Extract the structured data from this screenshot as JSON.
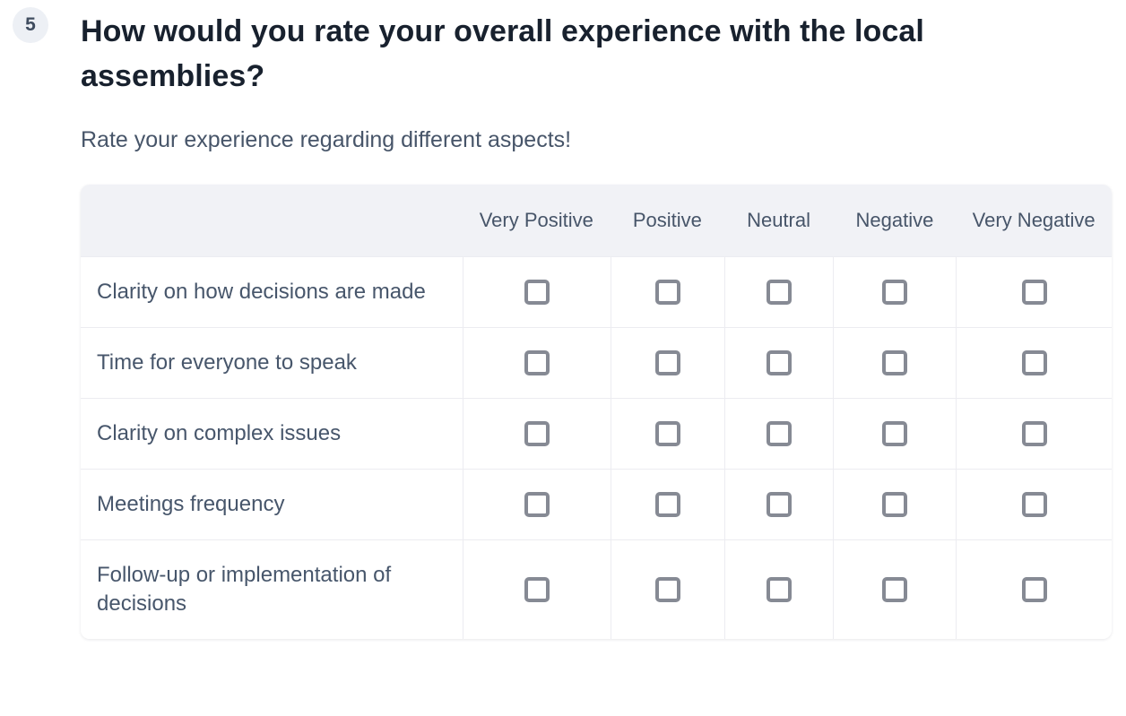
{
  "question": {
    "number": "5",
    "title": "How would you rate your overall experience with the local assemblies?",
    "subtitle": "Rate your experience regarding different aspects!"
  },
  "matrix": {
    "columns": [
      "Very Positive",
      "Positive",
      "Neutral",
      "Negative",
      "Very Negative"
    ],
    "rows": [
      "Clarity on how decisions are made",
      "Time for everyone to speak",
      "Clarity on complex issues",
      "Meetings frequency",
      "Follow-up or implementation of decisions"
    ],
    "checkbox_state": "all unchecked",
    "selected": []
  },
  "colors": {
    "header_bg": "#f1f2f6",
    "cell_border": "#ececf1",
    "checkbox_border": "#868a94",
    "title_text": "#18212e",
    "body_text": "#47566b",
    "badge_bg": "#edf0f5"
  }
}
